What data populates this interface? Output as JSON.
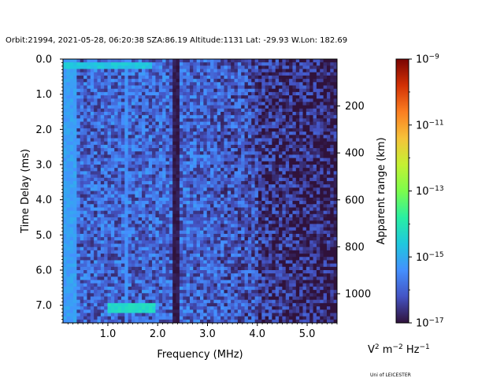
{
  "chart_data": {
    "type": "heatmap",
    "title": "Orbit:21994, 2021-05-28, 06:20:38 SZA:86.19 Altitude:1131 Lat: -29.93 W.Lon: 182.69",
    "xlabel": "Frequency (MHz)",
    "ylabel": "Time Delay (ms)",
    "y2label": "Apparent range (km)",
    "xlim": [
      0.1,
      5.6
    ],
    "ylim": [
      7.5,
      0.0
    ],
    "x_ticks": [
      {
        "value": 1.0,
        "label": "1.0"
      },
      {
        "value": 2.0,
        "label": "2.0"
      },
      {
        "value": 3.0,
        "label": "3.0"
      },
      {
        "value": 4.0,
        "label": "4.0"
      },
      {
        "value": 5.0,
        "label": "5.0"
      }
    ],
    "y_ticks": [
      {
        "value": 0.0,
        "label": "0.0"
      },
      {
        "value": 1.0,
        "label": "1.0"
      },
      {
        "value": 2.0,
        "label": "2.0"
      },
      {
        "value": 3.0,
        "label": "3.0"
      },
      {
        "value": 4.0,
        "label": "4.0"
      },
      {
        "value": 5.0,
        "label": "5.0"
      },
      {
        "value": 6.0,
        "label": "6.0"
      },
      {
        "value": 7.0,
        "label": "7.0"
      }
    ],
    "y2_ticks": [
      {
        "value": 200,
        "label": "200"
      },
      {
        "value": 400,
        "label": "400"
      },
      {
        "value": 600,
        "label": "600"
      },
      {
        "value": 800,
        "label": "800"
      },
      {
        "value": 1000,
        "label": "1000"
      }
    ],
    "y2_range_km_at_delay_max": 1124.25,
    "colorbar": {
      "label_prefix": "V",
      "label_rest": " m",
      "label_tail": " Hz",
      "exp_2": "2",
      "exp_m2": "−2",
      "exp_m1": "−1",
      "scale": "log",
      "range": [
        1e-17,
        1e-09
      ],
      "colormap": "turbo",
      "ticks": [
        {
          "exponent": -9,
          "base": "10",
          "sup": "−9"
        },
        {
          "exponent": -11,
          "base": "10",
          "sup": "−11"
        },
        {
          "exponent": -13,
          "base": "10",
          "sup": "−13"
        },
        {
          "exponent": -15,
          "base": "10",
          "sup": "−15"
        },
        {
          "exponent": -17,
          "base": "10",
          "sup": "−17"
        }
      ]
    },
    "features": [
      {
        "name": "low-frequency band",
        "freq_range": [
          0.1,
          0.35
        ],
        "delay_range": [
          0.0,
          7.5
        ],
        "log_power": -15.2
      },
      {
        "name": "surface echo strip",
        "freq_range": [
          0.1,
          1.9
        ],
        "delay_range": [
          0.07,
          0.25
        ],
        "log_power": -14.6
      },
      {
        "name": "vertical line 1.35 MHz",
        "freq_range": [
          1.32,
          1.38
        ],
        "delay_range": [
          0.0,
          7.5
        ],
        "log_power": -15.4
      },
      {
        "name": "dark gap 2.35 MHz",
        "freq_range": [
          2.32,
          2.42
        ],
        "delay_range": [
          0.0,
          7.5
        ],
        "log_power": -16.9
      },
      {
        "name": "ionosphere trace",
        "freq_range": [
          1.0,
          1.95
        ],
        "delay_range": [
          6.9,
          7.25
        ],
        "log_power": -14.3
      }
    ]
  },
  "credit": "Uni of LEICESTER"
}
